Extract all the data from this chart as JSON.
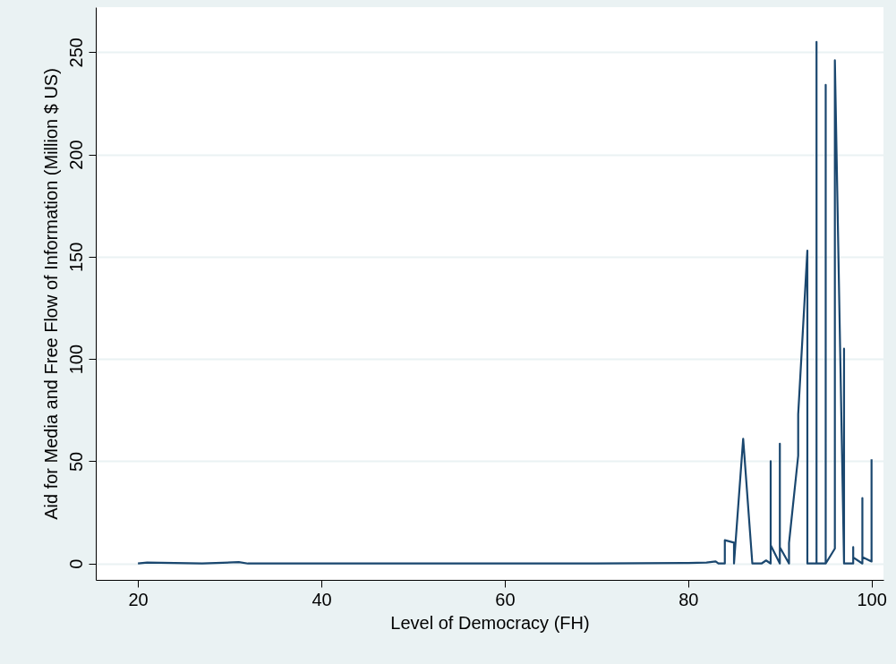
{
  "chart_data": {
    "type": "line",
    "xlabel": "Level of Democracy (FH)",
    "ylabel": "Aid for Media and Free Flow of Information (Million $ US)",
    "x": [
      20,
      21,
      27,
      31,
      32,
      50,
      70,
      80,
      82,
      83,
      83.3,
      84,
      84,
      85,
      85,
      86,
      87,
      88,
      88.5,
      89,
      89,
      89,
      90,
      90,
      90,
      91,
      91,
      92,
      92,
      93,
      93,
      94,
      94,
      94,
      95,
      95,
      95,
      96,
      96,
      97,
      97,
      97,
      98,
      98,
      98,
      99,
      99,
      99,
      100,
      100
    ],
    "series": [
      {
        "color": "#1a476f",
        "values": [
          0,
          0.5,
          0,
          0.7,
          0,
          0,
          0,
          0.3,
          0.5,
          1,
          0,
          0,
          11.4,
          10.2,
          0,
          61,
          0,
          0,
          1.5,
          0,
          50,
          9,
          0,
          58.6,
          8,
          0,
          10,
          52.7,
          73,
          153,
          0,
          0,
          255,
          0,
          0,
          234,
          0,
          7.3,
          246,
          0,
          105,
          0,
          0,
          8,
          3,
          0,
          32,
          3.2,
          1,
          51
        ]
      }
    ],
    "xlim": [
      15.4,
      101.3
    ],
    "ylim": [
      -8,
      272
    ],
    "xticks": [
      20,
      40,
      60,
      80,
      100
    ],
    "yticks": [
      0,
      50,
      100,
      150,
      200,
      250
    ],
    "grid": "y",
    "line_style": "solid",
    "marker": "none"
  }
}
